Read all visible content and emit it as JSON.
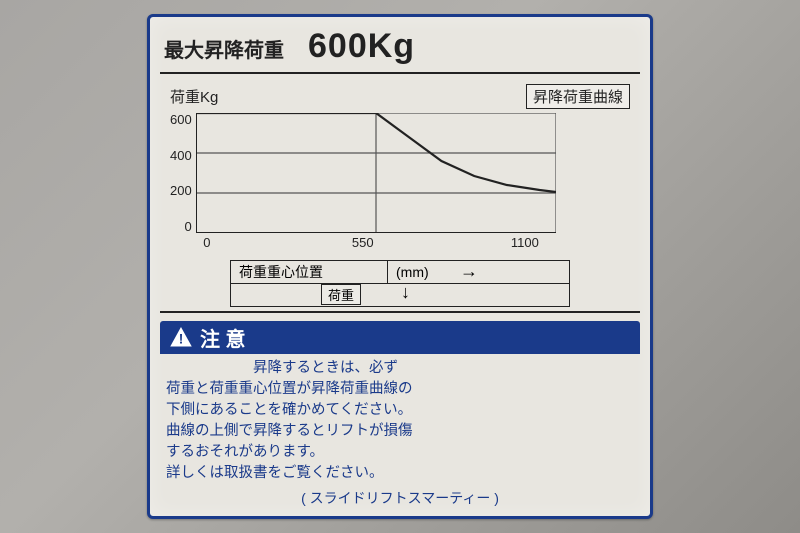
{
  "title": {
    "label": "最大昇降荷重",
    "value": "600Kg"
  },
  "chart": {
    "type": "line",
    "y_axis_label": "荷重Kg",
    "curve_box_label": "昇降荷重曲線",
    "ylim": [
      0,
      600
    ],
    "xlim": [
      0,
      1100
    ],
    "yticks": [
      600,
      400,
      200,
      0
    ],
    "xticks": [
      0,
      550,
      1100
    ],
    "grid_x": [
      0,
      550,
      1100
    ],
    "grid_y": [
      0,
      200,
      400,
      600
    ],
    "curve_points": [
      {
        "x": 0,
        "y": 600
      },
      {
        "x": 550,
        "y": 600
      },
      {
        "x": 650,
        "y": 480
      },
      {
        "x": 750,
        "y": 360
      },
      {
        "x": 850,
        "y": 285
      },
      {
        "x": 950,
        "y": 240
      },
      {
        "x": 1050,
        "y": 215
      },
      {
        "x": 1100,
        "y": 205
      }
    ],
    "line_color": "#222222",
    "grid_color": "#555555",
    "axis_color": "#222222",
    "line_width": 2.2,
    "grid_width": 1.2,
    "axis_width": 2,
    "font_size": 13
  },
  "legend": {
    "position_label": "荷重重心位置",
    "unit": "(mm)",
    "arrow_right": "→",
    "load_label": "荷重",
    "arrow_down": "↓"
  },
  "caution": {
    "icon_name": "warning-triangle",
    "header": "注 意",
    "body_lines": [
      "　　　　　　昇降するときは、必ず",
      "荷重と荷重重心位置が昇降荷重曲線の",
      "下側にあることを確かめてください。",
      "曲線の上側で昇降するとリフトが損傷",
      "するおそれがあります。",
      "詳しくは取扱書をご覧ください。"
    ]
  },
  "footer": "( スライドリフトスマーティー )",
  "colors": {
    "border": "#1a3a8a",
    "text_dark": "#222222",
    "text_blue": "#1a3a8a",
    "placard_bg": "#e8e6e0"
  }
}
